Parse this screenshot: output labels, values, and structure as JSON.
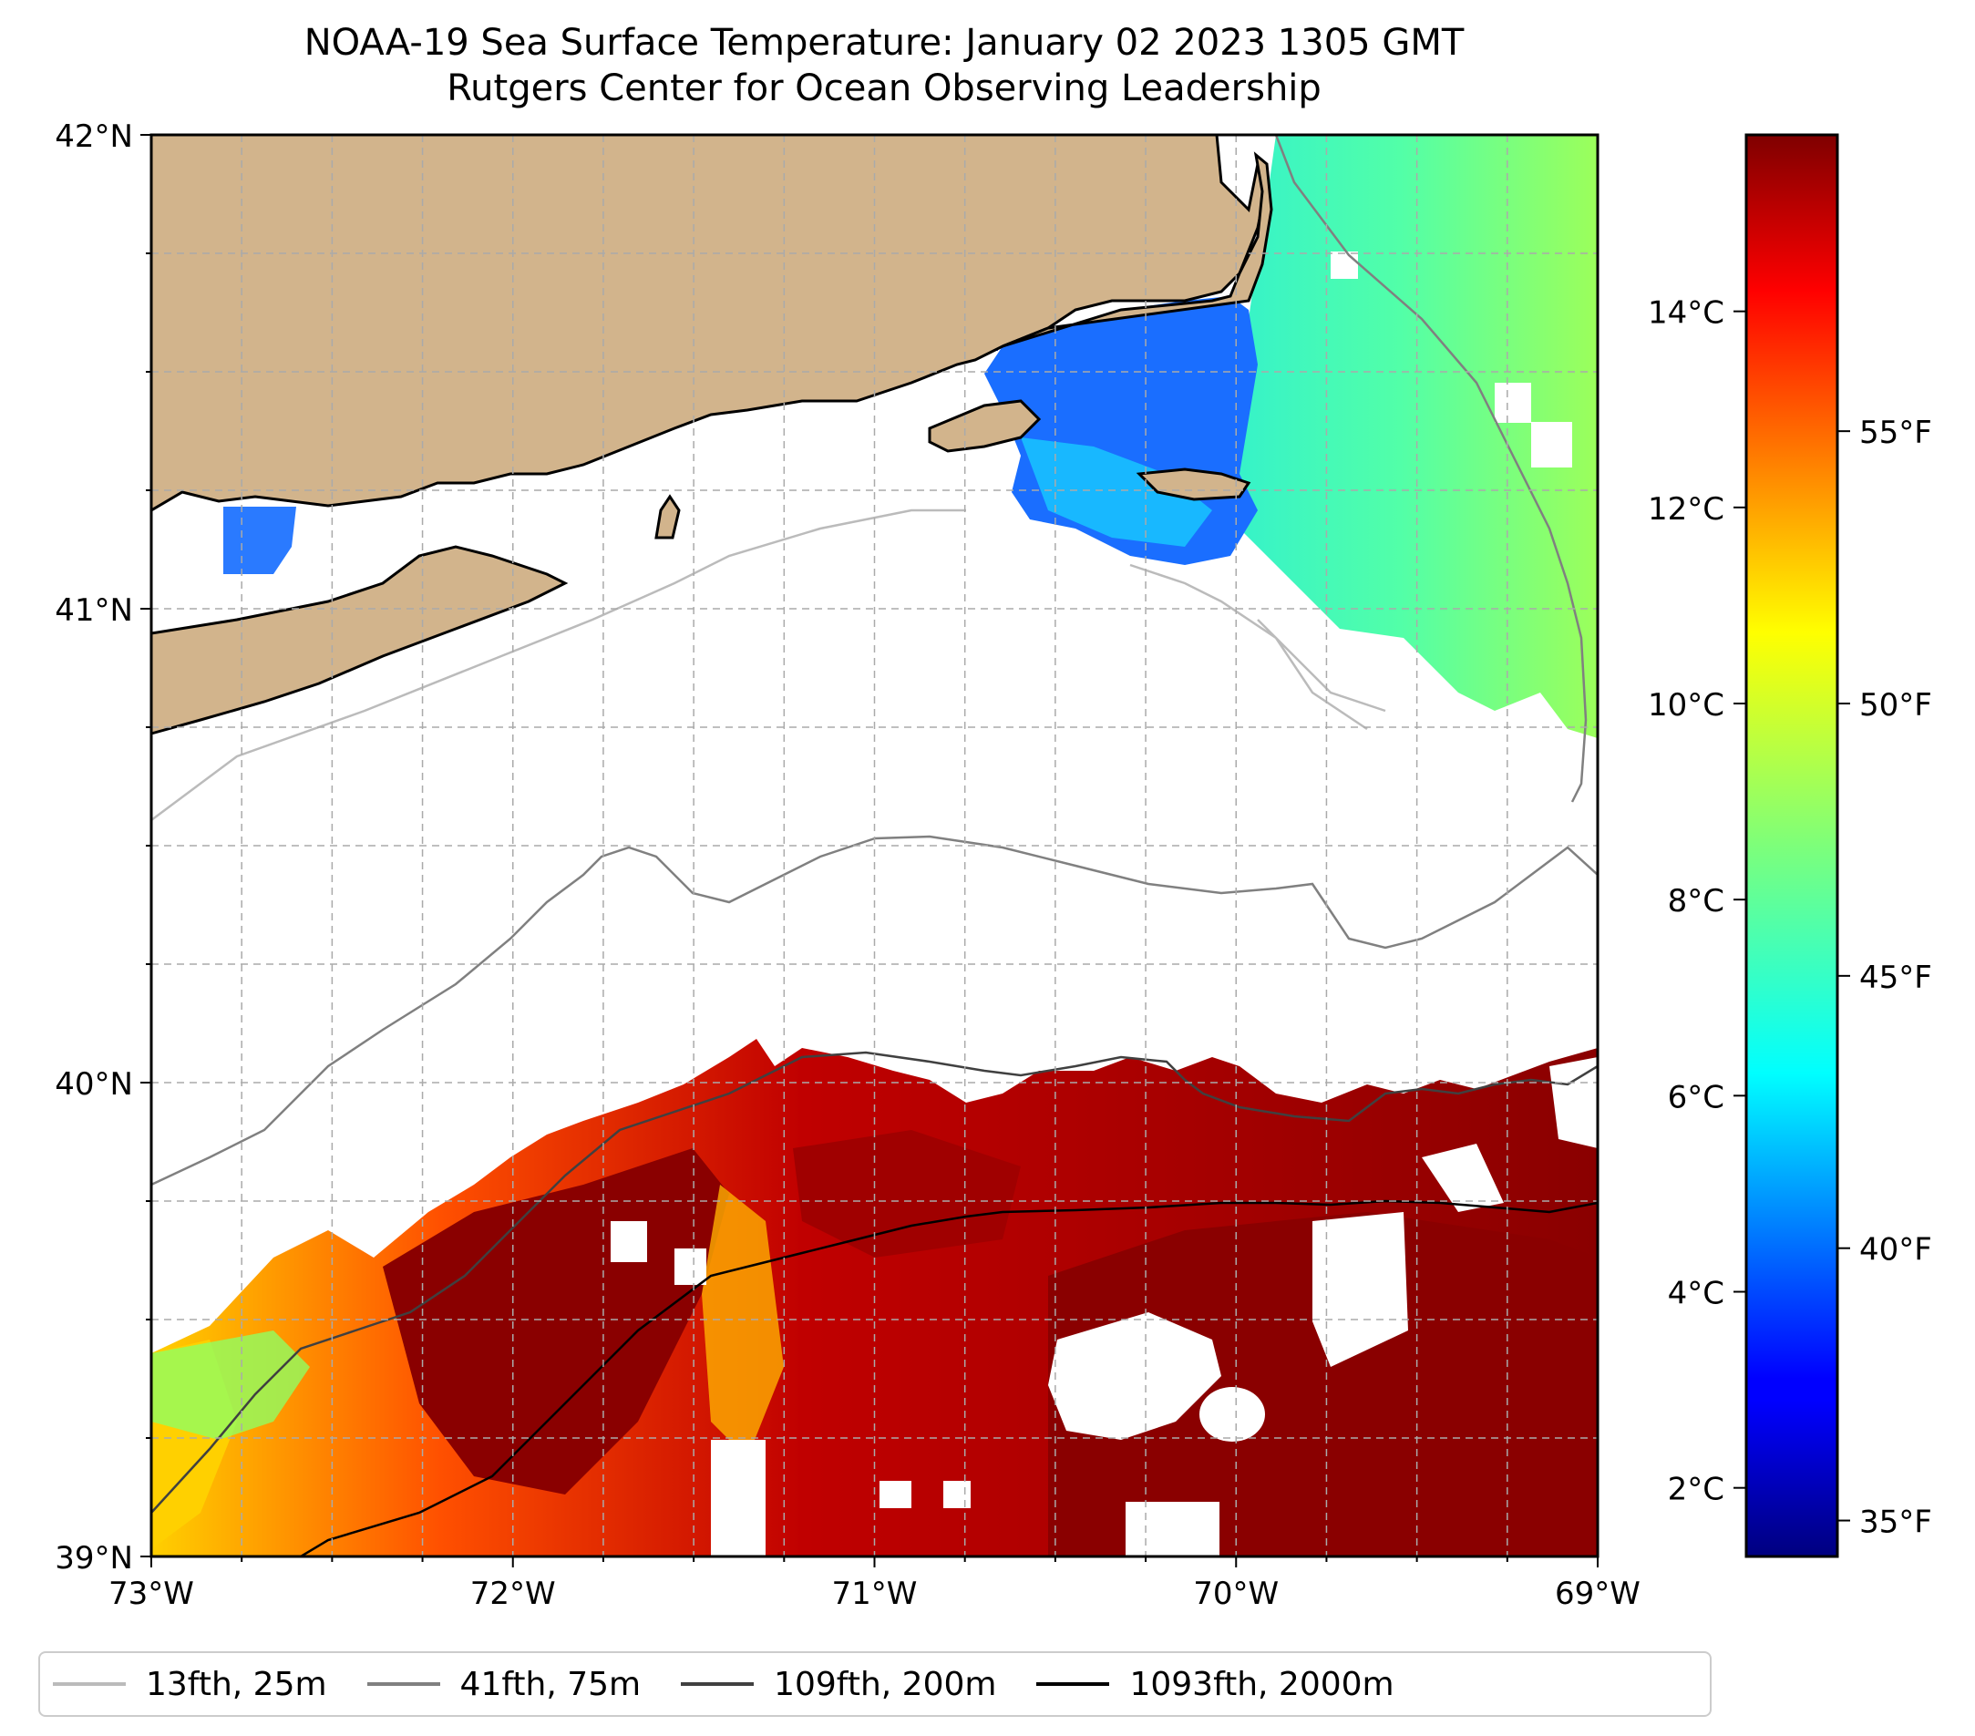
{
  "title": {
    "line1": "NOAA-19 Sea Surface Temperature: January 02 2023 1305 GMT",
    "line2": "Rutgers Center for Ocean Observing Leadership"
  },
  "map": {
    "lon_range": [
      -73,
      -69
    ],
    "lat_range": [
      39,
      42
    ],
    "lat_ticks": [
      {
        "value": 42,
        "label": "42°N"
      },
      {
        "value": 41,
        "label": "41°N"
      },
      {
        "value": 40,
        "label": "40°N"
      },
      {
        "value": 39,
        "label": "39°N"
      }
    ],
    "lon_ticks": [
      {
        "value": -73,
        "label": "73°W"
      },
      {
        "value": -72,
        "label": "72°W"
      },
      {
        "value": -71,
        "label": "71°W"
      },
      {
        "value": -70,
        "label": "70°W"
      },
      {
        "value": -69,
        "label": "69°W"
      }
    ],
    "gridlines": "dashed",
    "land_color": "#d2b48c",
    "no_data_color": "#ffffff",
    "sst_fields": [
      {
        "region": "southern-shelf-slope",
        "temp_range_c": [
          9,
          15
        ]
      },
      {
        "region": "georges-bank-gulf-of-maine",
        "temp_range_c": [
          7,
          9
        ]
      },
      {
        "region": "nantucket-sound-buzzards-bay",
        "temp_range_c": [
          3.5,
          5.5
        ]
      },
      {
        "region": "long-island-sound-east",
        "temp_range_c": [
          5,
          5.5
        ]
      }
    ]
  },
  "colorbar": {
    "colormap": "jet",
    "celsius_range": [
      1.3,
      15.8
    ],
    "celsius_ticks": [
      {
        "value": 14,
        "label": "14°C"
      },
      {
        "value": 12,
        "label": "12°C"
      },
      {
        "value": 10,
        "label": "10°C"
      },
      {
        "value": 8,
        "label": "8°C"
      },
      {
        "value": 6,
        "label": "6°C"
      },
      {
        "value": 4,
        "label": "4°C"
      },
      {
        "value": 2,
        "label": "2°C"
      }
    ],
    "fahrenheit_ticks": [
      {
        "value": 55,
        "label": "55°F"
      },
      {
        "value": 50,
        "label": "50°F"
      },
      {
        "value": 45,
        "label": "45°F"
      },
      {
        "value": 40,
        "label": "40°F"
      },
      {
        "value": 35,
        "label": "35°F"
      }
    ]
  },
  "legend": {
    "placement": "below",
    "items": [
      {
        "label": "13fth, 25m",
        "color": "#bbbbbb"
      },
      {
        "label": "41fth, 75m",
        "color": "#808080"
      },
      {
        "label": "109fth, 200m",
        "color": "#404040"
      },
      {
        "label": "1093fth, 2000m",
        "color": "#000000"
      }
    ]
  }
}
